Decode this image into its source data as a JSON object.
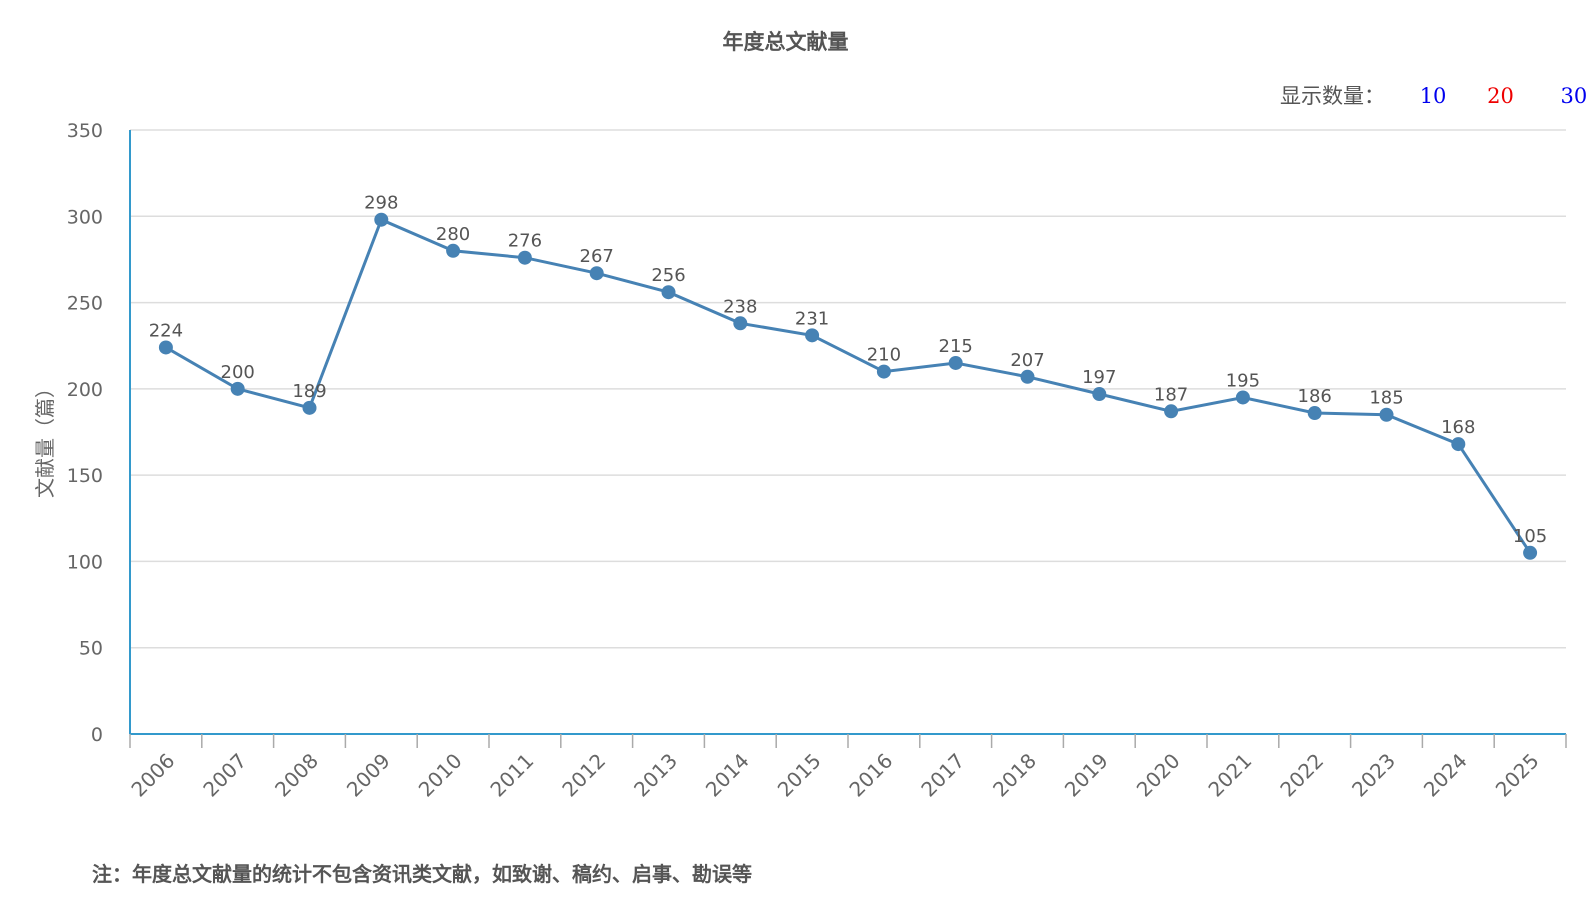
{
  "chart_data": {
    "type": "line",
    "title": "年度总文献量",
    "ylabel": "文献量（篇）",
    "xlabel": "",
    "ylim": [
      0,
      350
    ],
    "yticks": [
      0,
      50,
      100,
      150,
      200,
      250,
      300,
      350
    ],
    "grid": true,
    "categories": [
      "2006",
      "2007",
      "2008",
      "2009",
      "2010",
      "2011",
      "2012",
      "2013",
      "2014",
      "2015",
      "2016",
      "2017",
      "2018",
      "2019",
      "2020",
      "2021",
      "2022",
      "2023",
      "2024",
      "2025"
    ],
    "values": [
      224,
      200,
      189,
      298,
      280,
      276,
      267,
      256,
      238,
      231,
      210,
      215,
      207,
      197,
      187,
      195,
      186,
      185,
      168,
      105
    ],
    "line_color": "#4682b4",
    "axis_color": "#3399cc",
    "grid_color": "#dddddd"
  },
  "selector": {
    "label": "显示数量：",
    "options": [
      {
        "label": "10",
        "color": "#0000ee"
      },
      {
        "label": "20",
        "color": "#ee0000"
      },
      {
        "label": "30",
        "color": "#0000ee"
      }
    ]
  },
  "footnote": "注：年度总文献量的统计不包含资讯类文献，如致谢、稿约、启事、勘误等"
}
